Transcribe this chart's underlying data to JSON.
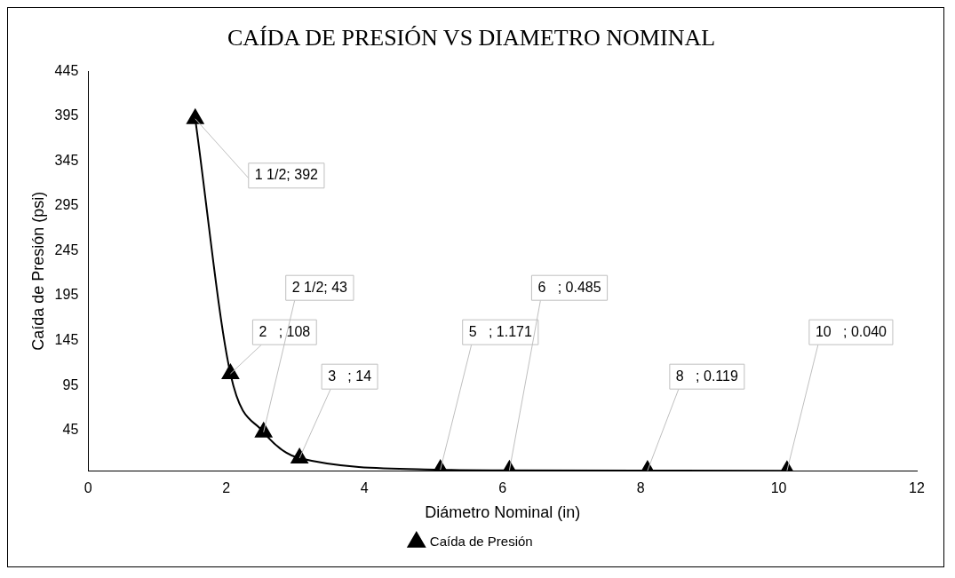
{
  "chart_data": {
    "type": "line",
    "title": "CAÍDA DE PRESIÓN VS DIAMETRO NOMINAL",
    "xlabel": "Diámetro Nominal (in)",
    "ylabel": "Caída de Presión (psi)",
    "x": [
      1.55,
      2.06,
      2.54,
      3.06,
      5.1,
      6.1,
      8.1,
      10.12
    ],
    "series": [
      {
        "name": "Caída de Presión",
        "color": "#000000",
        "values": [
          392,
          108,
          43,
          14,
          1.171,
          0.485,
          0.119,
          0.04
        ]
      }
    ],
    "xlim": [
      0,
      12
    ],
    "xticks": [
      0,
      2,
      4,
      6,
      8,
      10,
      12
    ],
    "ylim": [
      0,
      445
    ],
    "yticks": [
      45,
      95,
      145,
      195,
      245,
      295,
      345,
      395,
      445
    ],
    "grid": false,
    "legend": "bottom",
    "marker": "triangle",
    "line_style": "solid",
    "annotations": [
      {
        "text": "1 1/2; 392",
        "x": 1.55,
        "y": 392
      },
      {
        "text": "2   ; 108",
        "x": 2.06,
        "y": 108
      },
      {
        "text": "2 1/2; 43",
        "x": 2.54,
        "y": 43
      },
      {
        "text": "3   ; 14",
        "x": 3.06,
        "y": 14
      },
      {
        "text": "5   ; 1.171",
        "x": 5.1,
        "y": 1.171
      },
      {
        "text": "6   ; 0.485",
        "x": 6.1,
        "y": 0.485
      },
      {
        "text": "8   ; 0.119",
        "x": 8.1,
        "y": 0.119
      },
      {
        "text": "10   ; 0.040",
        "x": 10.12,
        "y": 0.04
      }
    ]
  }
}
